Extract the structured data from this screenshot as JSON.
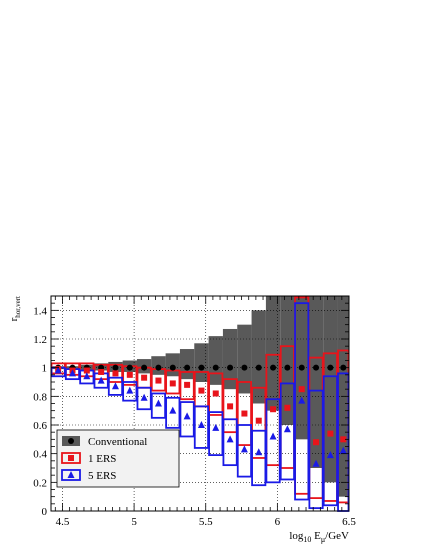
{
  "chart_data": {
    "type": "scatter",
    "title": "",
    "xlabel": {
      "base": "log",
      "sub": "10",
      "main": " E",
      "sub2": "μ",
      "tail": "/GeV"
    },
    "ylabel": {
      "main": "r",
      "sub": "hor,vert"
    },
    "xlim": [
      4.42,
      6.5
    ],
    "ylim": [
      0,
      1.5
    ],
    "x_ticks": [
      4.5,
      5,
      5.5,
      6,
      6.5
    ],
    "x_tick_labels": [
      "4.5",
      "5",
      "5.5",
      "6",
      "6.5"
    ],
    "y_ticks": [
      0,
      0.2,
      0.4,
      0.6,
      0.8,
      1,
      1.2,
      1.4
    ],
    "y_tick_labels": [
      "0",
      "0.2",
      "0.4",
      "0.6",
      "0.8",
      "1",
      "1.2",
      "1.4"
    ],
    "grid": true,
    "legend_position": "bottom-left",
    "bin_edges": [
      4.42,
      4.52,
      4.62,
      4.72,
      4.82,
      4.92,
      5.02,
      5.12,
      5.22,
      5.32,
      5.42,
      5.52,
      5.62,
      5.72,
      5.82,
      5.92,
      6.02,
      6.12,
      6.22,
      6.32,
      6.42,
      6.5
    ],
    "x_centers": [
      4.47,
      4.57,
      4.67,
      4.77,
      4.87,
      4.97,
      5.07,
      5.17,
      5.27,
      5.37,
      5.47,
      5.57,
      5.67,
      5.77,
      5.87,
      5.97,
      6.07,
      6.17,
      6.27,
      6.37,
      6.46
    ],
    "series": [
      {
        "name": "Conventional",
        "marker": "circle",
        "color": "#000000",
        "band_color": "#595959",
        "values": [
          1.0,
          1.0,
          1.0,
          1.0,
          1.0,
          1.0,
          1.0,
          1.0,
          1.0,
          1.0,
          1.0,
          1.0,
          1.0,
          1.0,
          1.0,
          1.0,
          1.0,
          1.0,
          1.0,
          1.0,
          1.0
        ],
        "band_low": [
          0.99,
          0.99,
          0.98,
          0.98,
          0.97,
          0.97,
          0.96,
          0.95,
          0.94,
          0.92,
          0.9,
          0.88,
          0.85,
          0.82,
          0.75,
          0.7,
          0.6,
          0.5,
          0.3,
          0.2,
          0.1
        ],
        "band_high": [
          1.01,
          1.01,
          1.02,
          1.03,
          1.04,
          1.05,
          1.06,
          1.08,
          1.1,
          1.13,
          1.17,
          1.22,
          1.27,
          1.3,
          1.4,
          1.5,
          1.5,
          1.5,
          1.5,
          1.5,
          1.5
        ]
      },
      {
        "name": "1 ERS",
        "marker": "square",
        "color": "#e8141b",
        "values": [
          0.99,
          0.98,
          0.98,
          0.97,
          0.96,
          0.95,
          0.93,
          0.91,
          0.89,
          0.88,
          0.84,
          0.82,
          0.73,
          0.68,
          0.63,
          0.71,
          0.72,
          0.85,
          0.48,
          0.54,
          0.5
        ],
        "box_low": [
          0.96,
          0.95,
          0.94,
          0.92,
          0.9,
          0.88,
          0.86,
          0.84,
          0.82,
          0.78,
          0.73,
          0.67,
          0.55,
          0.46,
          0.37,
          0.32,
          0.3,
          0.12,
          0.09,
          0.07,
          0.06
        ],
        "box_high": [
          1.03,
          1.03,
          1.03,
          1.02,
          1.02,
          1.01,
          1.0,
          0.99,
          0.98,
          0.97,
          0.97,
          0.96,
          0.92,
          0.9,
          0.86,
          1.09,
          1.15,
          1.49,
          1.07,
          1.1,
          1.12
        ]
      },
      {
        "name": "5 ERS",
        "marker": "triangle",
        "color": "#1a1ae6",
        "values": [
          0.98,
          0.96,
          0.94,
          0.91,
          0.87,
          0.84,
          0.79,
          0.75,
          0.7,
          0.66,
          0.6,
          0.58,
          0.5,
          0.43,
          0.41,
          0.52,
          0.57,
          0.77,
          0.33,
          0.39,
          0.42
        ],
        "box_low": [
          0.94,
          0.92,
          0.89,
          0.86,
          0.81,
          0.77,
          0.71,
          0.65,
          0.58,
          0.52,
          0.44,
          0.39,
          0.32,
          0.24,
          0.18,
          0.2,
          0.22,
          0.08,
          0.02,
          0.04,
          0.0
        ],
        "box_high": [
          1.0,
          0.99,
          0.98,
          0.96,
          0.93,
          0.9,
          0.86,
          0.82,
          0.79,
          0.76,
          0.73,
          0.69,
          0.64,
          0.6,
          0.56,
          0.78,
          0.89,
          1.45,
          0.84,
          0.94,
          0.96
        ]
      }
    ]
  }
}
